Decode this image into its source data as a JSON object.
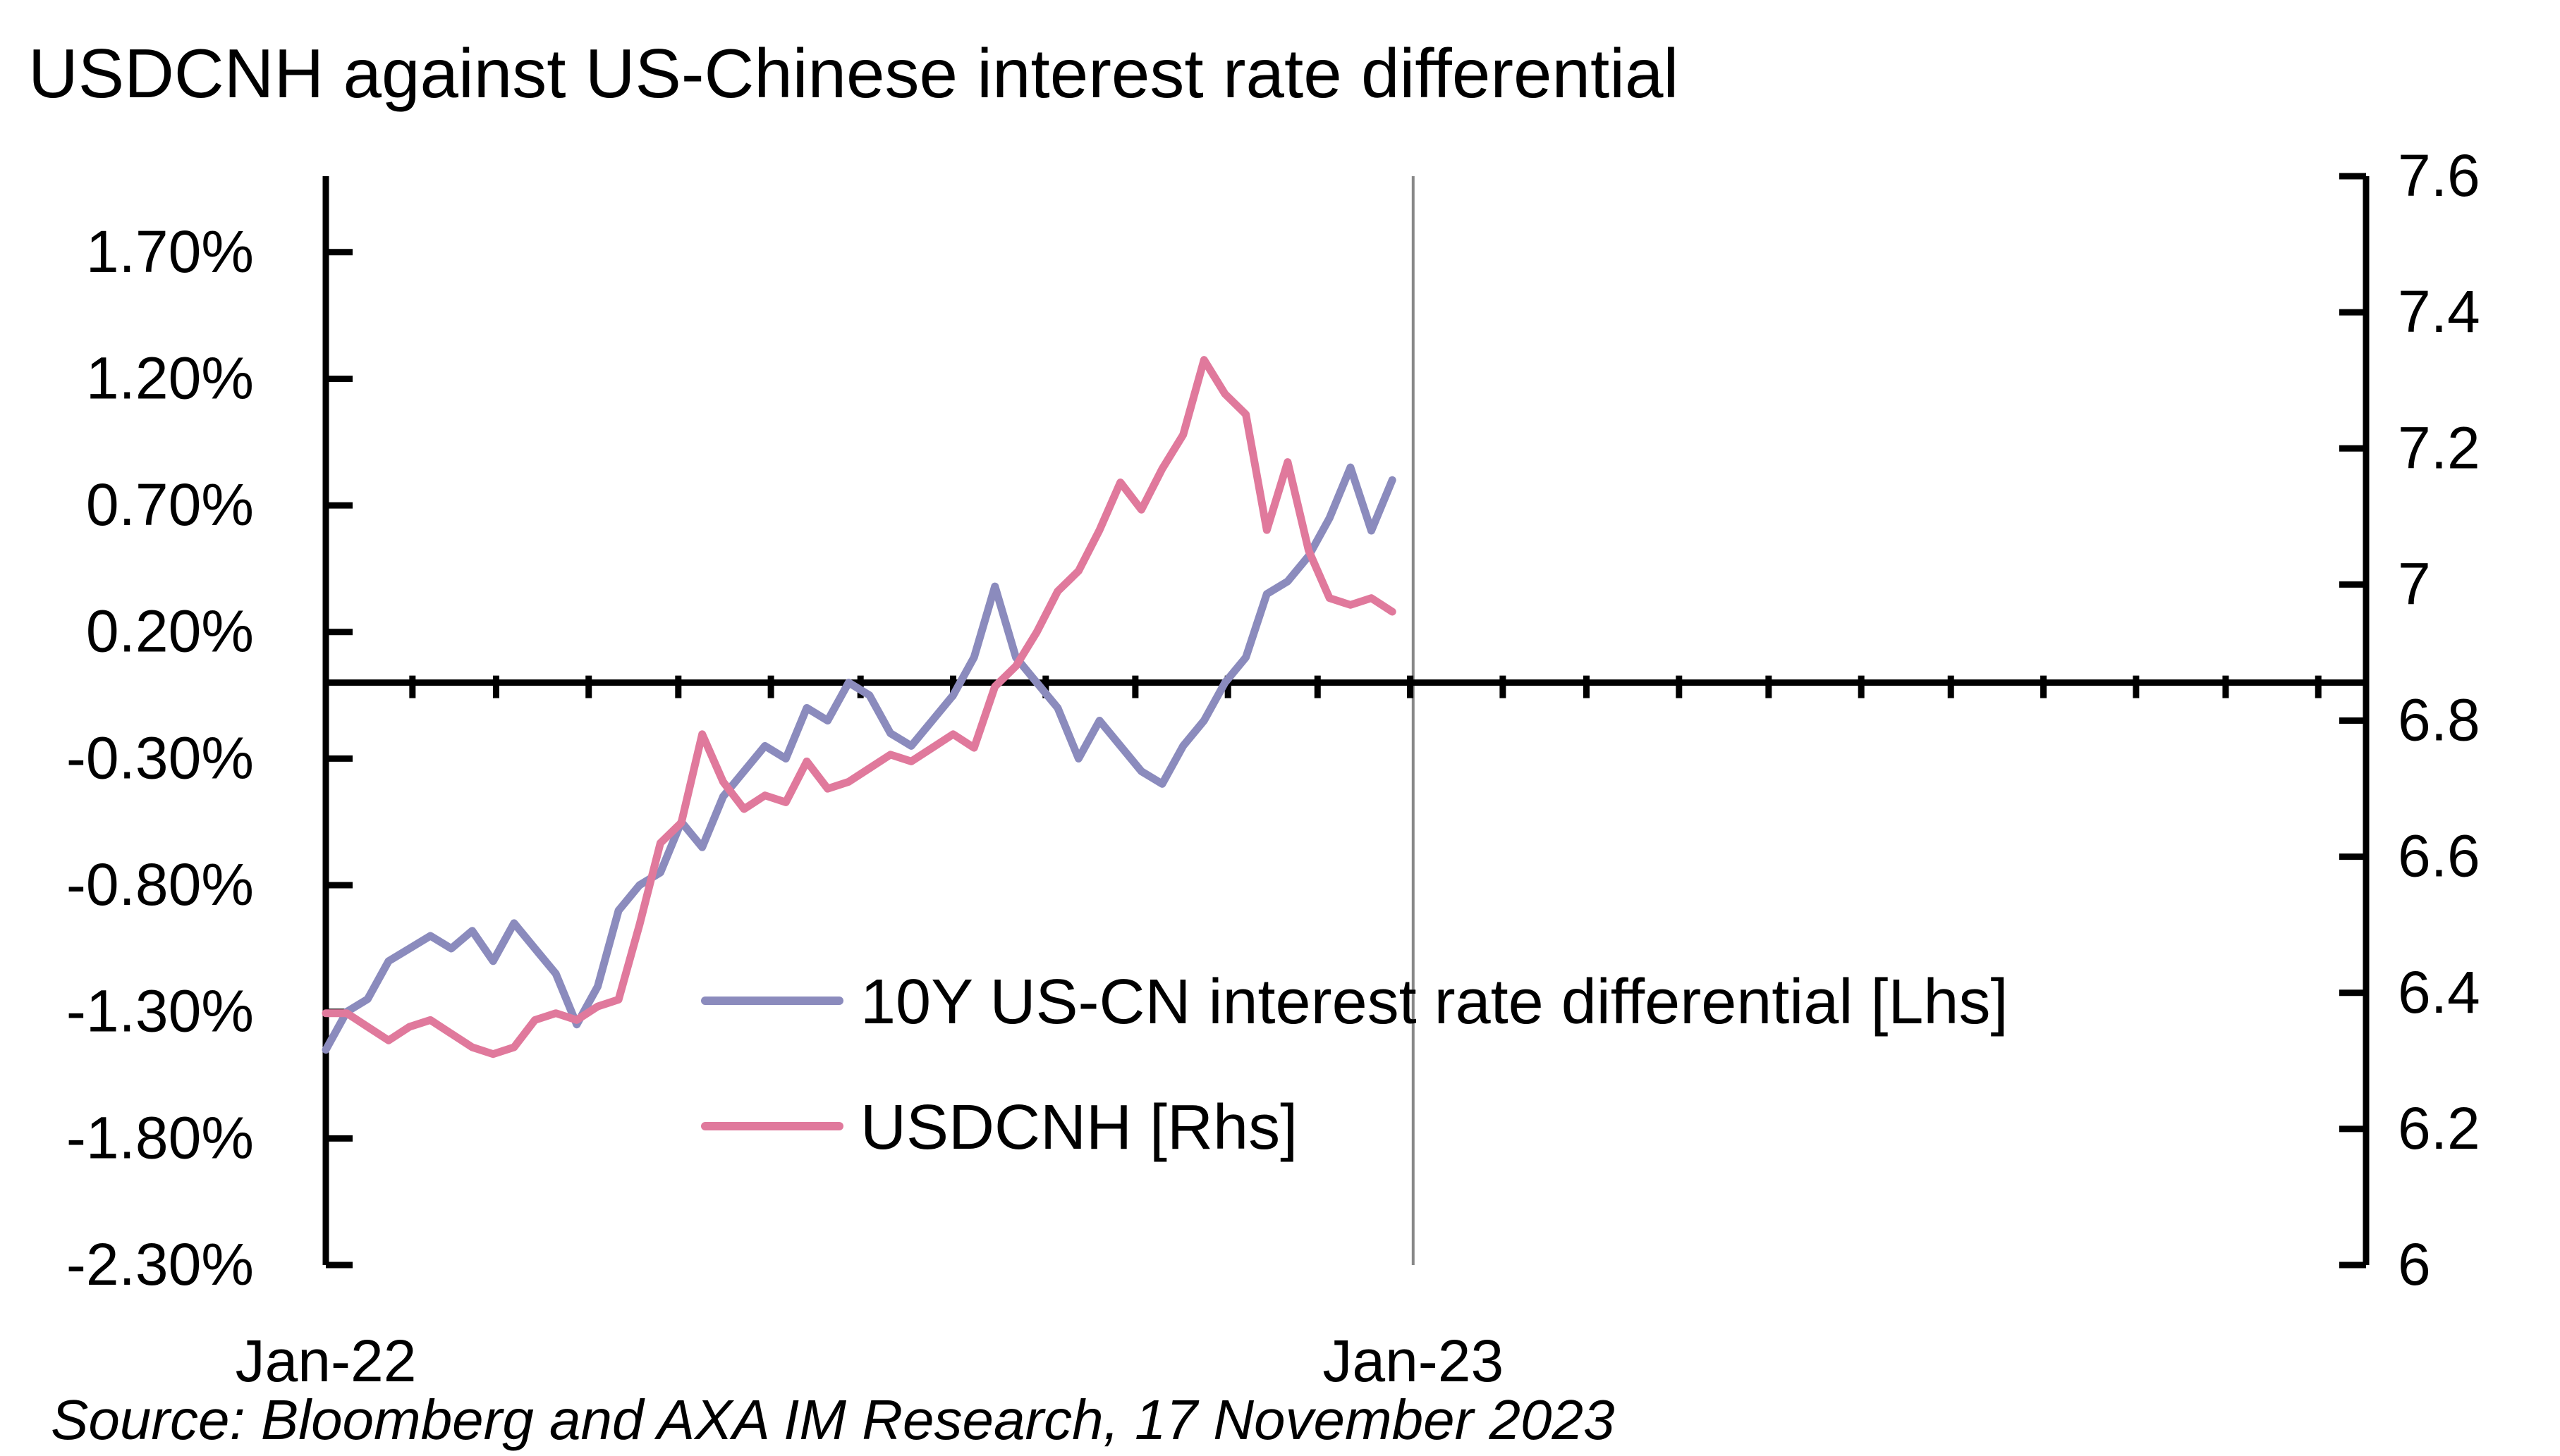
{
  "chart_data": {
    "type": "line",
    "title": "USDCNH against US-Chinese interest rate differential",
    "source": "Source: Bloomberg and AXA IM Research, 17 November 2023",
    "x_axis": {
      "range": [
        "2022-01-03",
        "2023-11-17"
      ],
      "ticks": [
        {
          "date": "2022-01-03",
          "label": "Jan-22"
        },
        {
          "date": "2023-01-02",
          "label": "Jan-23"
        }
      ],
      "reference_line": "2023-01-02"
    },
    "y_left": {
      "min": -2.3,
      "max": 2.0,
      "ticks": [
        1.7,
        1.2,
        0.7,
        0.2,
        -0.3,
        -0.8,
        -1.3,
        -1.8,
        -2.3
      ],
      "tick_labels": [
        "1.70%",
        "1.20%",
        "0.70%",
        "0.20%",
        "-0.30%",
        "-0.80%",
        "-1.30%",
        "-1.80%",
        "-2.30%"
      ],
      "baseline": 0
    },
    "y_right": {
      "min": 6.0,
      "max": 7.6,
      "ticks": [
        7.6,
        7.4,
        7.2,
        7.0,
        6.8,
        6.6,
        6.4,
        6.2,
        6.0
      ],
      "tick_labels": [
        "7.6",
        "7.4",
        "7.2",
        "7",
        "6.8",
        "6.6",
        "6.4",
        "6.2",
        "6"
      ]
    },
    "legend": {
      "placement": "center-bottom"
    },
    "grid": false,
    "series": [
      {
        "name": "10Y US-CN interest rate differential [Lhs]",
        "axis": "left",
        "color": "#8b8bbd",
        "points": [
          [
            "2022-01-03",
            -1.45
          ],
          [
            "2022-01-10",
            -1.3
          ],
          [
            "2022-01-17",
            -1.25
          ],
          [
            "2022-01-24",
            -1.1
          ],
          [
            "2022-01-31",
            -1.05
          ],
          [
            "2022-02-07",
            -1.0
          ],
          [
            "2022-02-14",
            -1.05
          ],
          [
            "2022-02-21",
            -0.98
          ],
          [
            "2022-02-28",
            -1.1
          ],
          [
            "2022-03-07",
            -0.95
          ],
          [
            "2022-03-14",
            -1.05
          ],
          [
            "2022-03-21",
            -1.15
          ],
          [
            "2022-03-28",
            -1.35
          ],
          [
            "2022-04-04",
            -1.2
          ],
          [
            "2022-04-11",
            -0.9
          ],
          [
            "2022-04-18",
            -0.8
          ],
          [
            "2022-04-25",
            -0.75
          ],
          [
            "2022-05-02",
            -0.55
          ],
          [
            "2022-05-09",
            -0.65
          ],
          [
            "2022-05-16",
            -0.45
          ],
          [
            "2022-05-23",
            -0.35
          ],
          [
            "2022-05-30",
            -0.25
          ],
          [
            "2022-06-06",
            -0.3
          ],
          [
            "2022-06-13",
            -0.1
          ],
          [
            "2022-06-20",
            -0.15
          ],
          [
            "2022-06-27",
            0.0
          ],
          [
            "2022-07-04",
            -0.05
          ],
          [
            "2022-07-11",
            -0.2
          ],
          [
            "2022-07-18",
            -0.25
          ],
          [
            "2022-07-25",
            -0.15
          ],
          [
            "2022-08-01",
            -0.05
          ],
          [
            "2022-08-08",
            0.1
          ],
          [
            "2022-08-15",
            0.38
          ],
          [
            "2022-08-22",
            0.1
          ],
          [
            "2022-08-29",
            0.0
          ],
          [
            "2022-09-05",
            -0.1
          ],
          [
            "2022-09-12",
            -0.3
          ],
          [
            "2022-09-19",
            -0.15
          ],
          [
            "2022-09-26",
            -0.25
          ],
          [
            "2022-10-03",
            -0.35
          ],
          [
            "2022-10-10",
            -0.4
          ],
          [
            "2022-10-17",
            -0.25
          ],
          [
            "2022-10-24",
            -0.15
          ],
          [
            "2022-10-31",
            0.0
          ],
          [
            "2022-11-07",
            0.1
          ],
          [
            "2022-11-14",
            0.35
          ],
          [
            "2022-11-21",
            0.4
          ],
          [
            "2022-11-28",
            0.5
          ],
          [
            "2022-12-05",
            0.65
          ],
          [
            "2022-12-12",
            0.85
          ],
          [
            "2022-12-19",
            0.6
          ],
          [
            "2022-12-26",
            0.8
          ]
        ]
      },
      {
        "name": "USDCNH [Rhs]",
        "axis": "right",
        "color": "#e0799c",
        "points": [
          [
            "2022-01-03",
            6.37
          ],
          [
            "2022-01-10",
            6.37
          ],
          [
            "2022-01-17",
            6.35
          ],
          [
            "2022-01-24",
            6.33
          ],
          [
            "2022-01-31",
            6.35
          ],
          [
            "2022-02-07",
            6.36
          ],
          [
            "2022-02-14",
            6.34
          ],
          [
            "2022-02-21",
            6.32
          ],
          [
            "2022-02-28",
            6.31
          ],
          [
            "2022-03-07",
            6.32
          ],
          [
            "2022-03-14",
            6.36
          ],
          [
            "2022-03-21",
            6.37
          ],
          [
            "2022-03-28",
            6.36
          ],
          [
            "2022-04-04",
            6.38
          ],
          [
            "2022-04-11",
            6.39
          ],
          [
            "2022-04-18",
            6.5
          ],
          [
            "2022-04-25",
            6.62
          ],
          [
            "2022-05-02",
            6.65
          ],
          [
            "2022-05-09",
            6.78
          ],
          [
            "2022-05-16",
            6.71
          ],
          [
            "2022-05-23",
            6.67
          ],
          [
            "2022-05-30",
            6.69
          ],
          [
            "2022-06-06",
            6.68
          ],
          [
            "2022-06-13",
            6.74
          ],
          [
            "2022-06-20",
            6.7
          ],
          [
            "2022-06-27",
            6.71
          ],
          [
            "2022-07-04",
            6.73
          ],
          [
            "2022-07-11",
            6.75
          ],
          [
            "2022-07-18",
            6.74
          ],
          [
            "2022-07-25",
            6.76
          ],
          [
            "2022-08-01",
            6.78
          ],
          [
            "2022-08-08",
            6.76
          ],
          [
            "2022-08-15",
            6.85
          ],
          [
            "2022-08-22",
            6.88
          ],
          [
            "2022-08-29",
            6.93
          ],
          [
            "2022-09-05",
            6.99
          ],
          [
            "2022-09-12",
            7.02
          ],
          [
            "2022-09-19",
            7.08
          ],
          [
            "2022-09-26",
            7.15
          ],
          [
            "2022-10-03",
            7.11
          ],
          [
            "2022-10-10",
            7.17
          ],
          [
            "2022-10-17",
            7.22
          ],
          [
            "2022-10-24",
            7.33
          ],
          [
            "2022-10-31",
            7.28
          ],
          [
            "2022-11-07",
            7.25
          ],
          [
            "2022-11-14",
            7.08
          ],
          [
            "2022-11-21",
            7.18
          ],
          [
            "2022-11-28",
            7.05
          ],
          [
            "2022-12-05",
            6.98
          ],
          [
            "2022-12-12",
            6.97
          ],
          [
            "2022-12-19",
            6.98
          ],
          [
            "2022-12-26",
            6.96
          ]
        ]
      }
    ]
  }
}
